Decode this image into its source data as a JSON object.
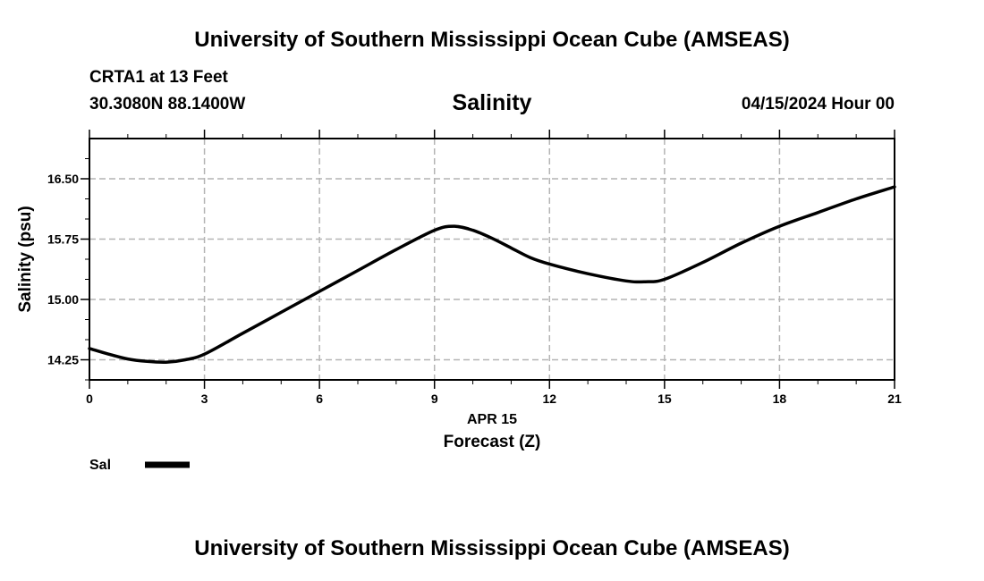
{
  "header": {
    "title": "University of Southern Mississippi Ocean Cube (AMSEAS)",
    "station": "CRTA1 at 13 Feet",
    "coords": "30.3080N  88.1400W",
    "subtitle": "Salinity",
    "datetime": "04/15/2024 Hour 00"
  },
  "footer": {
    "title": "University of Southern Mississippi Ocean Cube (AMSEAS)"
  },
  "chart_data": {
    "type": "line",
    "title": "Salinity",
    "xlabel": "Forecast (Z)",
    "ylabel": "Salinity (psu)",
    "date_label": "APR 15",
    "xlim": [
      0,
      21
    ],
    "ylim": [
      14.0,
      17.0
    ],
    "x_ticks": [
      0,
      3,
      6,
      9,
      12,
      15,
      18,
      21
    ],
    "x_tick_labels": [
      "0",
      "3",
      "6",
      "9",
      "12",
      "15",
      "18",
      "21"
    ],
    "y_ticks": [
      14.25,
      15.0,
      15.75,
      16.5
    ],
    "y_tick_labels": [
      "14.25",
      "15.00",
      "15.75",
      "16.50"
    ],
    "grid": true,
    "line_color": "#000000",
    "grid_color": "#b4b4b4",
    "legend": [
      {
        "label": "Sal",
        "color": "#000000"
      }
    ],
    "series": [
      {
        "name": "Sal",
        "x": [
          0,
          0.5,
          1,
          1.5,
          2,
          2.5,
          3,
          4,
          5,
          6,
          7,
          8,
          9,
          9.5,
          10,
          10.5,
          11,
          11.5,
          12,
          13,
          14,
          14.5,
          15,
          16,
          17,
          18,
          19,
          20,
          21
        ],
        "values": [
          14.39,
          14.32,
          14.26,
          14.23,
          14.22,
          14.25,
          14.32,
          14.58,
          14.84,
          15.1,
          15.36,
          15.62,
          15.86,
          15.91,
          15.86,
          15.76,
          15.64,
          15.52,
          15.44,
          15.32,
          15.23,
          15.22,
          15.25,
          15.46,
          15.7,
          15.91,
          16.08,
          16.25,
          16.4
        ]
      }
    ]
  }
}
